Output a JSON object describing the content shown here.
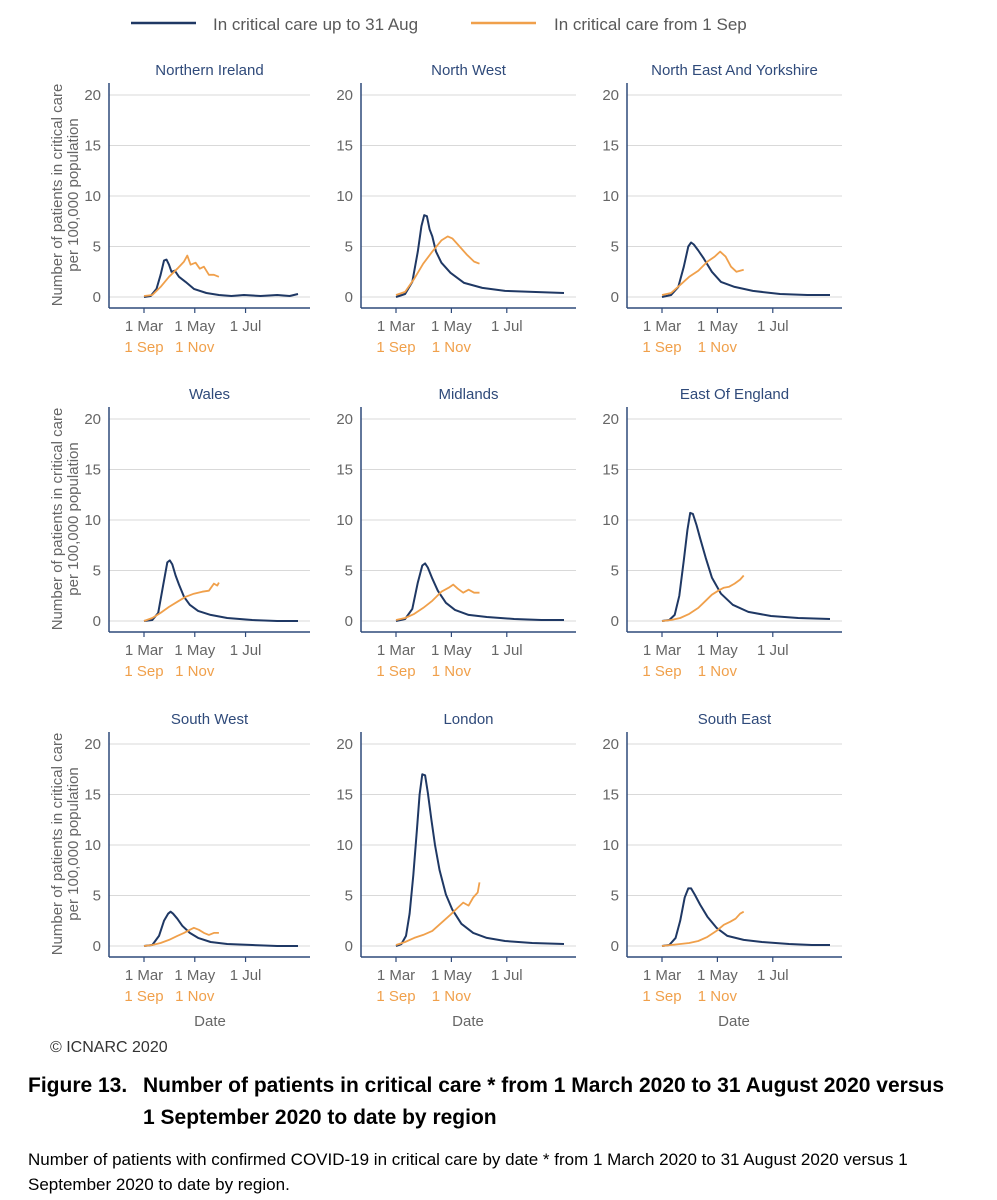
{
  "legend": {
    "items": [
      {
        "label": "In critical care up to 31 Aug",
        "color": "#1f3864"
      },
      {
        "label": "In critical care from 1 Sep",
        "color": "#f0a04b"
      }
    ]
  },
  "y_axis_label_lines": [
    "Number of patients in critical care",
    "per 100,000 population"
  ],
  "x_axis_title": "Date",
  "x_ticks_first_period": [
    "1 Mar",
    "1 May",
    "1 Jul"
  ],
  "x_ticks_second_period": [
    "1 Sep",
    "1 Nov"
  ],
  "copyright": "© ICNARC 2020",
  "caption": {
    "label": "Figure 13.",
    "title": "Number of patients in critical care * from 1 March 2020 to 31 August 2020 versus 1 September 2020 to date by region",
    "description": "Number of patients with confirmed COVID-19 in critical care by date * from 1 March 2020 to 31 August 2020 versus 1 September 2020 to date by region."
  },
  "chart_data": {
    "type": "line",
    "y_ticks": [
      0,
      5,
      10,
      15,
      20
    ],
    "ylim": [
      0,
      20
    ],
    "x_unit": "days since period start",
    "xlim": [
      0,
      185
    ],
    "series_names": [
      "In critical care up to 31 Aug",
      "In critical care from 1 Sep"
    ],
    "panels": [
      {
        "region": "Northern Ireland",
        "up_to_31_aug": [
          [
            0,
            0
          ],
          [
            8,
            0.1
          ],
          [
            15,
            0.8
          ],
          [
            20,
            2.2
          ],
          [
            24,
            3.6
          ],
          [
            27,
            3.7
          ],
          [
            30,
            3.2
          ],
          [
            33,
            2.5
          ],
          [
            37,
            2.6
          ],
          [
            42,
            2.0
          ],
          [
            50,
            1.5
          ],
          [
            60,
            0.8
          ],
          [
            75,
            0.4
          ],
          [
            90,
            0.2
          ],
          [
            105,
            0.1
          ],
          [
            120,
            0.2
          ],
          [
            140,
            0.1
          ],
          [
            160,
            0.2
          ],
          [
            175,
            0.1
          ],
          [
            185,
            0.3
          ]
        ],
        "from_1_sep": [
          [
            0,
            0.1
          ],
          [
            10,
            0.2
          ],
          [
            20,
            1.0
          ],
          [
            30,
            2.0
          ],
          [
            40,
            2.8
          ],
          [
            48,
            3.5
          ],
          [
            52,
            4.1
          ],
          [
            56,
            3.2
          ],
          [
            62,
            3.4
          ],
          [
            67,
            2.8
          ],
          [
            72,
            3.0
          ],
          [
            78,
            2.2
          ],
          [
            84,
            2.2
          ],
          [
            90,
            2.0
          ]
        ]
      },
      {
        "region": "North West",
        "up_to_31_aug": [
          [
            0,
            0
          ],
          [
            10,
            0.3
          ],
          [
            18,
            1.5
          ],
          [
            24,
            4.5
          ],
          [
            28,
            7.0
          ],
          [
            31,
            8.1
          ],
          [
            34,
            8.0
          ],
          [
            37,
            6.7
          ],
          [
            40,
            6.0
          ],
          [
            44,
            4.5
          ],
          [
            50,
            3.4
          ],
          [
            60,
            2.4
          ],
          [
            75,
            1.4
          ],
          [
            95,
            0.9
          ],
          [
            120,
            0.6
          ],
          [
            150,
            0.5
          ],
          [
            185,
            0.4
          ]
        ],
        "from_1_sep": [
          [
            0,
            0.2
          ],
          [
            10,
            0.5
          ],
          [
            20,
            1.8
          ],
          [
            30,
            3.3
          ],
          [
            40,
            4.5
          ],
          [
            50,
            5.6
          ],
          [
            57,
            6.0
          ],
          [
            62,
            5.8
          ],
          [
            70,
            5.0
          ],
          [
            78,
            4.2
          ],
          [
            86,
            3.5
          ],
          [
            92,
            3.3
          ]
        ]
      },
      {
        "region": "North East And Yorkshire",
        "up_to_31_aug": [
          [
            0,
            0
          ],
          [
            10,
            0.2
          ],
          [
            18,
            1.0
          ],
          [
            24,
            3.0
          ],
          [
            29,
            5.0
          ],
          [
            32,
            5.4
          ],
          [
            35,
            5.2
          ],
          [
            40,
            4.6
          ],
          [
            46,
            3.8
          ],
          [
            55,
            2.5
          ],
          [
            65,
            1.5
          ],
          [
            80,
            1.0
          ],
          [
            100,
            0.6
          ],
          [
            130,
            0.3
          ],
          [
            160,
            0.2
          ],
          [
            185,
            0.2
          ]
        ],
        "from_1_sep": [
          [
            0,
            0.2
          ],
          [
            10,
            0.4
          ],
          [
            20,
            1.2
          ],
          [
            30,
            2.0
          ],
          [
            40,
            2.6
          ],
          [
            50,
            3.5
          ],
          [
            58,
            4.0
          ],
          [
            64,
            4.5
          ],
          [
            70,
            4.0
          ],
          [
            76,
            3.0
          ],
          [
            82,
            2.5
          ],
          [
            90,
            2.7
          ]
        ]
      },
      {
        "region": "Wales",
        "up_to_31_aug": [
          [
            0,
            0
          ],
          [
            10,
            0.1
          ],
          [
            17,
            0.8
          ],
          [
            23,
            3.5
          ],
          [
            28,
            5.8
          ],
          [
            31,
            6.0
          ],
          [
            34,
            5.6
          ],
          [
            38,
            4.5
          ],
          [
            42,
            3.6
          ],
          [
            48,
            2.4
          ],
          [
            55,
            1.6
          ],
          [
            65,
            1.0
          ],
          [
            80,
            0.6
          ],
          [
            100,
            0.3
          ],
          [
            130,
            0.1
          ],
          [
            160,
            0.0
          ],
          [
            185,
            0.0
          ]
        ],
        "from_1_sep": [
          [
            0,
            0
          ],
          [
            10,
            0.3
          ],
          [
            20,
            0.8
          ],
          [
            30,
            1.4
          ],
          [
            40,
            1.9
          ],
          [
            50,
            2.4
          ],
          [
            60,
            2.7
          ],
          [
            70,
            2.9
          ],
          [
            78,
            3.0
          ],
          [
            84,
            3.7
          ],
          [
            88,
            3.5
          ],
          [
            90,
            3.8
          ]
        ]
      },
      {
        "region": "Midlands",
        "up_to_31_aug": [
          [
            0,
            0
          ],
          [
            10,
            0.2
          ],
          [
            18,
            1.2
          ],
          [
            24,
            3.8
          ],
          [
            29,
            5.5
          ],
          [
            32,
            5.7
          ],
          [
            35,
            5.3
          ],
          [
            40,
            4.2
          ],
          [
            46,
            3.0
          ],
          [
            55,
            1.8
          ],
          [
            65,
            1.1
          ],
          [
            80,
            0.6
          ],
          [
            100,
            0.4
          ],
          [
            130,
            0.2
          ],
          [
            160,
            0.1
          ],
          [
            185,
            0.1
          ]
        ],
        "from_1_sep": [
          [
            0,
            0.1
          ],
          [
            10,
            0.3
          ],
          [
            20,
            0.7
          ],
          [
            30,
            1.3
          ],
          [
            40,
            2.0
          ],
          [
            50,
            2.9
          ],
          [
            58,
            3.3
          ],
          [
            63,
            3.6
          ],
          [
            68,
            3.2
          ],
          [
            74,
            2.8
          ],
          [
            80,
            3.1
          ],
          [
            86,
            2.8
          ],
          [
            92,
            2.8
          ]
        ]
      },
      {
        "region": "East Of England",
        "up_to_31_aug": [
          [
            0,
            0
          ],
          [
            8,
            0.1
          ],
          [
            14,
            0.6
          ],
          [
            19,
            2.5
          ],
          [
            24,
            6.0
          ],
          [
            28,
            9.0
          ],
          [
            31,
            10.7
          ],
          [
            34,
            10.6
          ],
          [
            38,
            9.5
          ],
          [
            42,
            8.2
          ],
          [
            48,
            6.3
          ],
          [
            55,
            4.3
          ],
          [
            65,
            2.7
          ],
          [
            78,
            1.6
          ],
          [
            95,
            0.9
          ],
          [
            120,
            0.5
          ],
          [
            150,
            0.3
          ],
          [
            185,
            0.2
          ]
        ],
        "from_1_sep": [
          [
            0,
            0
          ],
          [
            10,
            0.1
          ],
          [
            20,
            0.3
          ],
          [
            30,
            0.7
          ],
          [
            40,
            1.3
          ],
          [
            48,
            2.0
          ],
          [
            55,
            2.6
          ],
          [
            62,
            3.0
          ],
          [
            68,
            3.3
          ],
          [
            74,
            3.4
          ],
          [
            80,
            3.7
          ],
          [
            86,
            4.1
          ],
          [
            90,
            4.5
          ]
        ]
      },
      {
        "region": "South West",
        "up_to_31_aug": [
          [
            0,
            0
          ],
          [
            10,
            0.1
          ],
          [
            18,
            1.0
          ],
          [
            24,
            2.5
          ],
          [
            29,
            3.2
          ],
          [
            32,
            3.4
          ],
          [
            35,
            3.2
          ],
          [
            40,
            2.7
          ],
          [
            46,
            2.0
          ],
          [
            55,
            1.3
          ],
          [
            65,
            0.8
          ],
          [
            80,
            0.4
          ],
          [
            100,
            0.2
          ],
          [
            130,
            0.1
          ],
          [
            160,
            0.0
          ],
          [
            185,
            0.0
          ]
        ],
        "from_1_sep": [
          [
            0,
            0
          ],
          [
            10,
            0.1
          ],
          [
            20,
            0.3
          ],
          [
            30,
            0.6
          ],
          [
            40,
            1.0
          ],
          [
            48,
            1.3
          ],
          [
            55,
            1.6
          ],
          [
            60,
            1.8
          ],
          [
            66,
            1.6
          ],
          [
            72,
            1.3
          ],
          [
            78,
            1.1
          ],
          [
            84,
            1.3
          ],
          [
            90,
            1.3
          ]
        ]
      },
      {
        "region": "London",
        "up_to_31_aug": [
          [
            0,
            0
          ],
          [
            6,
            0.2
          ],
          [
            11,
            1.0
          ],
          [
            15,
            3.2
          ],
          [
            19,
            7.0
          ],
          [
            23,
            11.5
          ],
          [
            26,
            15.0
          ],
          [
            29,
            17.0
          ],
          [
            32,
            16.9
          ],
          [
            35,
            15.2
          ],
          [
            39,
            12.5
          ],
          [
            43,
            10.0
          ],
          [
            48,
            7.5
          ],
          [
            55,
            5.1
          ],
          [
            62,
            3.6
          ],
          [
            72,
            2.2
          ],
          [
            85,
            1.3
          ],
          [
            100,
            0.8
          ],
          [
            120,
            0.5
          ],
          [
            150,
            0.3
          ],
          [
            185,
            0.2
          ]
        ],
        "from_1_sep": [
          [
            0,
            0.1
          ],
          [
            10,
            0.4
          ],
          [
            20,
            0.8
          ],
          [
            30,
            1.1
          ],
          [
            40,
            1.5
          ],
          [
            50,
            2.3
          ],
          [
            60,
            3.1
          ],
          [
            68,
            3.8
          ],
          [
            74,
            4.3
          ],
          [
            80,
            4.0
          ],
          [
            85,
            4.8
          ],
          [
            90,
            5.3
          ],
          [
            92,
            6.3
          ]
        ]
      },
      {
        "region": "South East",
        "up_to_31_aug": [
          [
            0,
            0
          ],
          [
            8,
            0.1
          ],
          [
            15,
            0.8
          ],
          [
            20,
            2.5
          ],
          [
            25,
            4.8
          ],
          [
            29,
            5.7
          ],
          [
            32,
            5.7
          ],
          [
            36,
            5.1
          ],
          [
            42,
            4.1
          ],
          [
            50,
            2.9
          ],
          [
            60,
            1.8
          ],
          [
            72,
            1.0
          ],
          [
            90,
            0.6
          ],
          [
            110,
            0.4
          ],
          [
            140,
            0.2
          ],
          [
            165,
            0.1
          ],
          [
            185,
            0.1
          ]
        ],
        "from_1_sep": [
          [
            0,
            0
          ],
          [
            10,
            0.1
          ],
          [
            20,
            0.2
          ],
          [
            30,
            0.3
          ],
          [
            40,
            0.5
          ],
          [
            50,
            0.9
          ],
          [
            60,
            1.5
          ],
          [
            68,
            2.1
          ],
          [
            75,
            2.4
          ],
          [
            81,
            2.7
          ],
          [
            86,
            3.2
          ],
          [
            90,
            3.4
          ]
        ]
      }
    ]
  }
}
